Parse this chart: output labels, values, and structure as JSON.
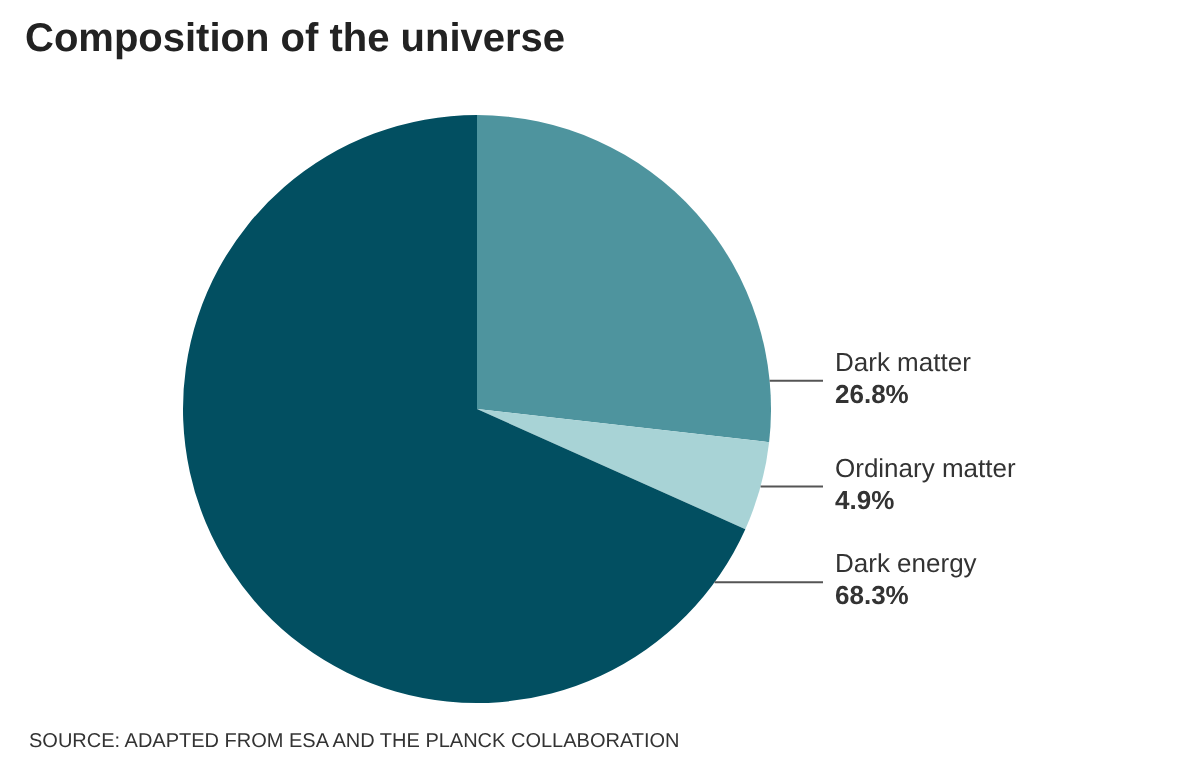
{
  "chart_data": {
    "type": "pie",
    "title": "Composition of the universe",
    "categories": [
      "Dark matter",
      "Ordinary matter",
      "Dark energy"
    ],
    "values": [
      26.8,
      4.9,
      68.3
    ],
    "colors": [
      "#4e949e",
      "#a8d3d6",
      "#024f61"
    ],
    "value_labels": [
      "26.8%",
      "4.9%",
      "68.3%"
    ],
    "legend": false,
    "annotations": [
      "SOURCE: ADAPTED FROM ESA AND THE PLANCK COLLABORATION"
    ]
  }
}
